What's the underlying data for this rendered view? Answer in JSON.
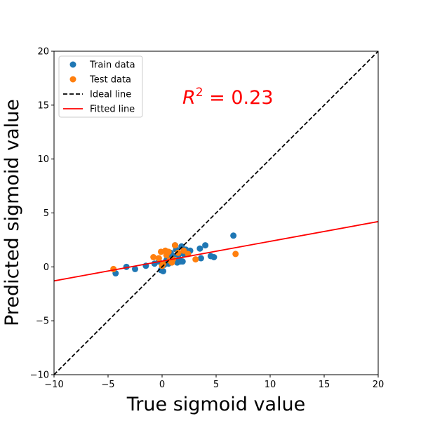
{
  "chart_data": {
    "type": "scatter",
    "xlabel": "True sigmoid value",
    "ylabel": "Predicted sigmoid value",
    "xlim": [
      -10,
      20
    ],
    "ylim": [
      -10,
      20
    ],
    "xticks": [
      -10,
      -5,
      0,
      5,
      10,
      15,
      20
    ],
    "yticks": [
      -10,
      -5,
      0,
      5,
      10,
      15,
      20
    ],
    "xtick_labels": [
      "−10",
      "−5",
      "0",
      "5",
      "10",
      "15",
      "20"
    ],
    "ytick_labels": [
      "−10",
      "−5",
      "0",
      "5",
      "10",
      "15",
      "20"
    ],
    "grid": false,
    "legend_position": "top-left",
    "annotation": {
      "prefix": "R",
      "superscript": "2",
      "suffix": " = 0.23",
      "color": "#ff0000"
    },
    "series": [
      {
        "name": "Train data",
        "kind": "scatter",
        "color": "#1f77b4",
        "points": [
          [
            -4.3,
            -0.6
          ],
          [
            -3.3,
            0.0
          ],
          [
            -2.5,
            -0.2
          ],
          [
            -1.5,
            0.1
          ],
          [
            -0.7,
            0.3
          ],
          [
            -0.3,
            0.5
          ],
          [
            -0.1,
            -0.3
          ],
          [
            0.1,
            -0.4
          ],
          [
            0.2,
            0.2
          ],
          [
            0.4,
            0.6
          ],
          [
            0.5,
            0.9
          ],
          [
            0.6,
            0.3
          ],
          [
            0.8,
            1.3
          ],
          [
            0.9,
            0.5
          ],
          [
            1.0,
            1.0
          ],
          [
            1.1,
            0.6
          ],
          [
            1.2,
            2.0
          ],
          [
            1.3,
            1.6
          ],
          [
            1.4,
            0.4
          ],
          [
            1.5,
            1.1
          ],
          [
            1.6,
            0.7
          ],
          [
            1.7,
            0.5
          ],
          [
            1.8,
            1.9
          ],
          [
            1.9,
            0.5
          ],
          [
            2.0,
            1.2
          ],
          [
            2.2,
            1.6
          ],
          [
            2.4,
            1.3
          ],
          [
            2.6,
            1.5
          ],
          [
            3.5,
            1.7
          ],
          [
            3.6,
            0.8
          ],
          [
            4.0,
            2.0
          ],
          [
            4.5,
            1.0
          ],
          [
            4.8,
            0.9
          ],
          [
            6.6,
            2.9
          ]
        ]
      },
      {
        "name": "Test data",
        "kind": "scatter",
        "color": "#ff7f0e",
        "points": [
          [
            -4.5,
            -0.2
          ],
          [
            -0.8,
            0.9
          ],
          [
            -0.3,
            0.8
          ],
          [
            -0.1,
            1.4
          ],
          [
            0.0,
            0.1
          ],
          [
            0.1,
            0.3
          ],
          [
            0.3,
            1.5
          ],
          [
            0.4,
            1.1
          ],
          [
            0.6,
            1.4
          ],
          [
            0.7,
            0.6
          ],
          [
            0.9,
            0.4
          ],
          [
            1.0,
            0.7
          ],
          [
            1.2,
            2.0
          ],
          [
            1.5,
            1.3
          ],
          [
            2.0,
            1.5
          ],
          [
            2.4,
            1.2
          ],
          [
            3.1,
            0.7
          ],
          [
            6.8,
            1.2
          ]
        ]
      },
      {
        "name": "Ideal line",
        "kind": "line",
        "dash": true,
        "color": "#000000",
        "points": [
          [
            -10,
            -10
          ],
          [
            20,
            20
          ]
        ]
      },
      {
        "name": "Fitted line",
        "kind": "line",
        "dash": false,
        "color": "#ff0000",
        "points": [
          [
            -10,
            -1.3
          ],
          [
            20,
            4.2
          ]
        ]
      }
    ]
  }
}
